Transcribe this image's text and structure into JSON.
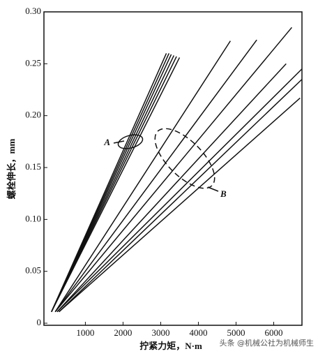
{
  "chart_data": {
    "type": "line",
    "x_label": "拧紧力矩，N·m",
    "y_label": "螺栓伸长，mm",
    "annotations": [
      "A",
      "B"
    ],
    "watermark": "头条 @机械公社为机械师生",
    "xlim": [
      -100,
      6750
    ],
    "ylim": [
      -0.002,
      0.3
    ],
    "xticks": [
      1000,
      2000,
      3000,
      4000,
      5000,
      6000
    ],
    "yticks": [
      {
        "value": 0,
        "label": "0"
      },
      0.05,
      {
        "value": 0.1,
        "label": "0.10"
      },
      0.15,
      {
        "value": 0.2,
        "label": "0.20"
      },
      0.25,
      {
        "value": 0.3,
        "label": "0.30"
      }
    ],
    "color": "#111111",
    "series": [
      {
        "x": [
          100,
          3150
        ],
        "values": [
          0.011,
          0.26
        ]
      },
      {
        "x": [
          100,
          3220
        ],
        "values": [
          0.011,
          0.26
        ]
      },
      {
        "x": [
          100,
          3280
        ],
        "values": [
          0.011,
          0.259
        ]
      },
      {
        "x": [
          100,
          3350
        ],
        "values": [
          0.011,
          0.258
        ]
      },
      {
        "x": [
          100,
          3420
        ],
        "values": [
          0.011,
          0.257
        ]
      },
      {
        "x": [
          100,
          3500
        ],
        "values": [
          0.011,
          0.256
        ]
      },
      {
        "x": [
          200,
          4850
        ],
        "values": [
          0.011,
          0.272
        ]
      },
      {
        "x": [
          200,
          5550
        ],
        "values": [
          0.011,
          0.273
        ]
      },
      {
        "x": [
          200,
          6480
        ],
        "values": [
          0.011,
          0.285
        ]
      },
      {
        "x": [
          250,
          6330
        ],
        "values": [
          0.011,
          0.25
        ]
      },
      {
        "x": [
          250,
          6750
        ],
        "values": [
          0.011,
          0.245
        ]
      },
      {
        "x": [
          300,
          6750
        ],
        "values": [
          0.011,
          0.235
        ]
      },
      {
        "x": [
          300,
          6700
        ],
        "values": [
          0.011,
          0.217
        ]
      }
    ]
  }
}
